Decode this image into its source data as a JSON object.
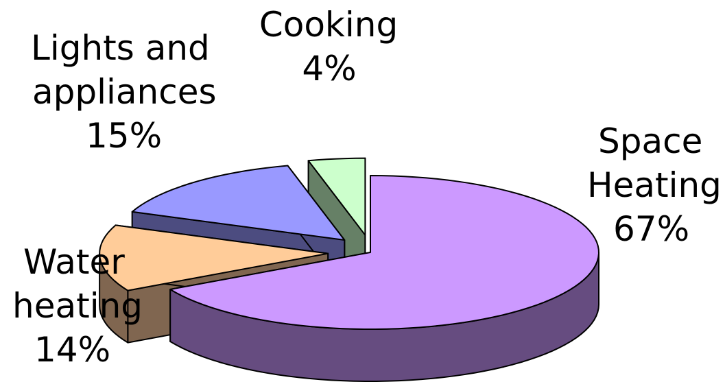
{
  "chart_data": {
    "type": "pie",
    "style": "3d-exploded",
    "title": "",
    "legend": "none",
    "slices": [
      {
        "label_lines": [
          "Space",
          "Heating"
        ],
        "value_text": "67%",
        "value": 67,
        "top_color": "#cc99ff",
        "side_color": "#664c80"
      },
      {
        "label_lines": [
          "Water",
          "heating"
        ],
        "value_text": "14%",
        "value": 14,
        "top_color": "#ffcc99",
        "side_color": "#806650"
      },
      {
        "label_lines": [
          "Lights and",
          "appliances"
        ],
        "value_text": "15%",
        "value": 15,
        "top_color": "#9999ff",
        "side_color": "#4c4c80"
      },
      {
        "label_lines": [
          "Cooking"
        ],
        "value_text": "4%",
        "value": 4,
        "top_color": "#ccffcc",
        "side_color": "#668066"
      }
    ]
  }
}
